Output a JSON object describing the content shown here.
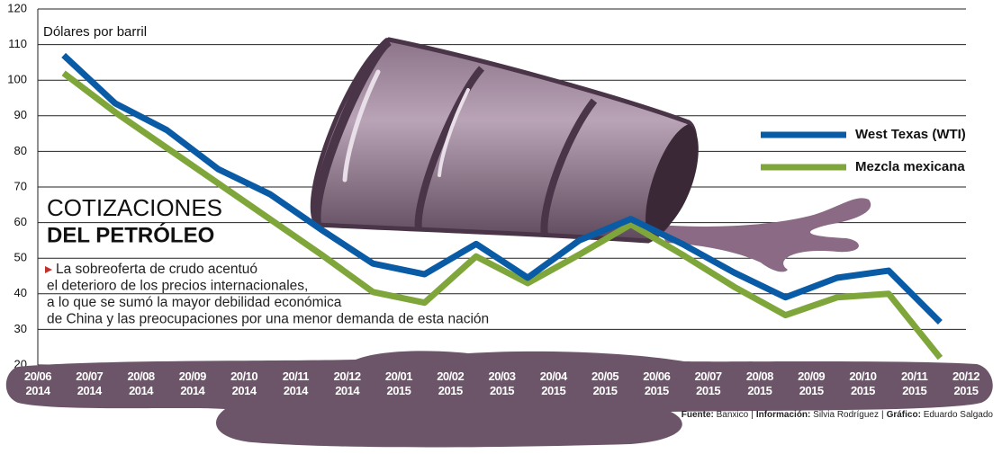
{
  "chart_data": {
    "type": "line",
    "title": [
      "COTIZACIONES",
      "DEL PETRÓLEO"
    ],
    "ylabel": "Dólares por barril",
    "annotation": [
      "La sobreoferta de crudo acentuó",
      "el deterioro de los precios internacionales,",
      "a lo que se sumó la mayor debilidad económica",
      "de China y las preocupaciones por una menor demanda de esta nación"
    ],
    "xlim": [
      0,
      18
    ],
    "xticks": [
      {
        "value": 0,
        "label": "20/06 2014"
      },
      {
        "value": 1,
        "label": "20/07 2014"
      },
      {
        "value": 2,
        "label": "20/08 2014"
      },
      {
        "value": 3,
        "label": "20/09 2014"
      },
      {
        "value": 4,
        "label": "20/10 2014"
      },
      {
        "value": 5,
        "label": "20/11 2014"
      },
      {
        "value": 6,
        "label": "20/12 2014"
      },
      {
        "value": 7,
        "label": "20/01 2015"
      },
      {
        "value": 8,
        "label": "20/02 2015"
      },
      {
        "value": 9,
        "label": "20/03 2015"
      },
      {
        "value": 10,
        "label": "20/04 2015"
      },
      {
        "value": 11,
        "label": "20/05 2015"
      },
      {
        "value": 12,
        "label": "20/06 2015"
      },
      {
        "value": 13,
        "label": "20/07 2015"
      },
      {
        "value": 14,
        "label": "20/08 2015"
      },
      {
        "value": 15,
        "label": "20/09 2015"
      },
      {
        "value": 16,
        "label": "20/10 2015"
      },
      {
        "value": 17,
        "label": "20/11 2015"
      },
      {
        "value": 18,
        "label": "20/12 2015"
      }
    ],
    "x": [
      0.5,
      1.5,
      2.5,
      3.5,
      4.5,
      5.5,
      6.5,
      7.5,
      8.5,
      9.5,
      10.5,
      11.5,
      12.5,
      13.5,
      14.5,
      15.5,
      16.5,
      17.5
    ],
    "ylim": [
      20,
      120
    ],
    "yticks": [
      20,
      30,
      40,
      50,
      60,
      70,
      80,
      90,
      100,
      110,
      120
    ],
    "grid": true,
    "series": [
      {
        "name": "West Texas (WTI)",
        "color": "#0a5ba6",
        "values": [
          107,
          93.5,
          86,
          75,
          68,
          58,
          48.5,
          45.5,
          54,
          44.5,
          55,
          61,
          54,
          46,
          39,
          44.5,
          46.5,
          32
        ]
      },
      {
        "name": "Mezcla mexicana",
        "color": "#7fa63a",
        "values": [
          102,
          91,
          81,
          71,
          61,
          51,
          40.5,
          37.5,
          50.5,
          43,
          51,
          59.5,
          51,
          42,
          34,
          39,
          40,
          22
        ]
      }
    ],
    "source": [
      {
        "label": "Fuente:",
        "text": "Banxico"
      },
      {
        "label": "Información:",
        "text": "Silvia Rodríguez"
      },
      {
        "label": "Gráfico:",
        "text": "Eduardo Salgado"
      }
    ]
  }
}
